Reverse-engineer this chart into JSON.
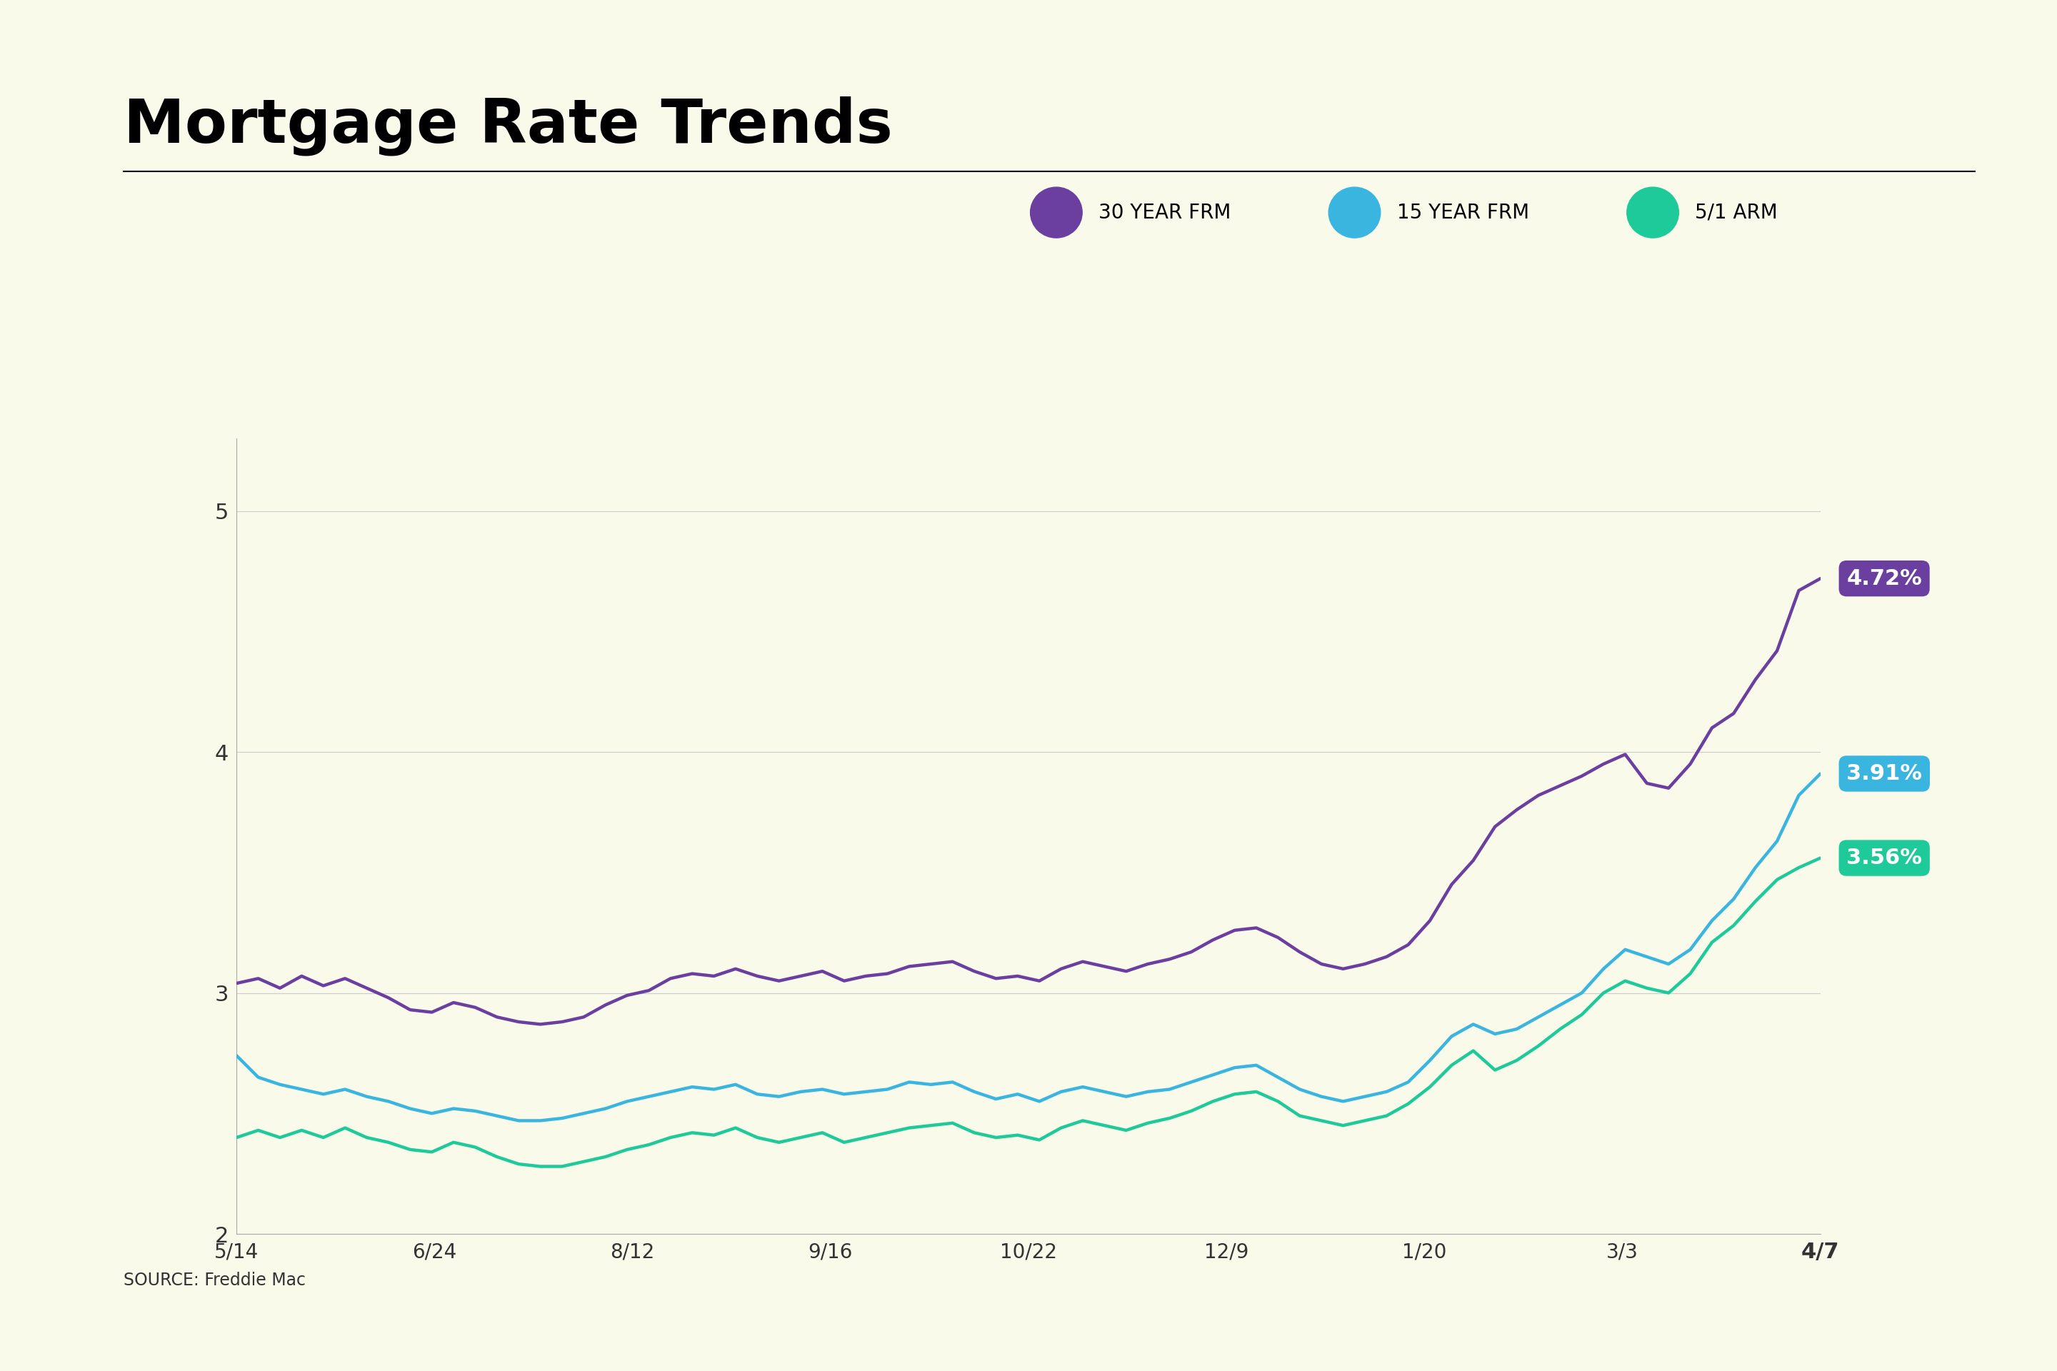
{
  "title": "Mortgage Rate Trends",
  "background_color": "#fafaeb",
  "source_text": "SOURCE: Freddie Mac",
  "ylim": [
    2.0,
    5.3
  ],
  "yticks": [
    2,
    3,
    4,
    5
  ],
  "legend": [
    {
      "label": "30 YEAR FRM",
      "color": "#6b3fa0"
    },
    {
      "label": "15 YEAR FRM",
      "color": "#3ab5e0"
    },
    {
      "label": "5/1 ARM",
      "color": "#1ec99a"
    }
  ],
  "annotations": [
    {
      "text": "4.72%",
      "color": "#6b3fa0",
      "value": 4.72
    },
    {
      "text": "3.91%",
      "color": "#3ab5e0",
      "value": 3.91
    },
    {
      "text": "3.56%",
      "color": "#1ec99a",
      "value": 3.56
    }
  ],
  "x_labels": [
    "5/14",
    "6/24",
    "8/12",
    "9/16",
    "10/22",
    "12/9",
    "1/20",
    "3/3",
    "4/7"
  ],
  "series_30yr": [
    3.04,
    3.06,
    3.02,
    3.07,
    3.03,
    3.06,
    3.02,
    2.98,
    2.93,
    2.92,
    2.96,
    2.94,
    2.9,
    2.88,
    2.87,
    2.88,
    2.9,
    2.95,
    2.99,
    3.01,
    3.06,
    3.08,
    3.07,
    3.1,
    3.07,
    3.05,
    3.07,
    3.09,
    3.05,
    3.07,
    3.08,
    3.11,
    3.12,
    3.13,
    3.09,
    3.06,
    3.07,
    3.05,
    3.1,
    3.13,
    3.11,
    3.09,
    3.12,
    3.14,
    3.17,
    3.22,
    3.26,
    3.27,
    3.23,
    3.17,
    3.12,
    3.1,
    3.12,
    3.15,
    3.2,
    3.3,
    3.45,
    3.55,
    3.69,
    3.76,
    3.82,
    3.86,
    3.9,
    3.95,
    3.99,
    3.87,
    3.85,
    3.95,
    4.1,
    4.16,
    4.3,
    4.42,
    4.67,
    4.72
  ],
  "series_15yr": [
    2.74,
    2.65,
    2.62,
    2.6,
    2.58,
    2.6,
    2.57,
    2.55,
    2.52,
    2.5,
    2.52,
    2.51,
    2.49,
    2.47,
    2.47,
    2.48,
    2.5,
    2.52,
    2.55,
    2.57,
    2.59,
    2.61,
    2.6,
    2.62,
    2.58,
    2.57,
    2.59,
    2.6,
    2.58,
    2.59,
    2.6,
    2.63,
    2.62,
    2.63,
    2.59,
    2.56,
    2.58,
    2.55,
    2.59,
    2.61,
    2.59,
    2.57,
    2.59,
    2.6,
    2.63,
    2.66,
    2.69,
    2.7,
    2.65,
    2.6,
    2.57,
    2.55,
    2.57,
    2.59,
    2.63,
    2.72,
    2.82,
    2.87,
    2.83,
    2.85,
    2.9,
    2.95,
    3.0,
    3.1,
    3.18,
    3.15,
    3.12,
    3.18,
    3.3,
    3.39,
    3.52,
    3.63,
    3.82,
    3.91
  ],
  "series_arm": [
    2.4,
    2.43,
    2.4,
    2.43,
    2.4,
    2.44,
    2.4,
    2.38,
    2.35,
    2.34,
    2.38,
    2.36,
    2.32,
    2.29,
    2.28,
    2.28,
    2.3,
    2.32,
    2.35,
    2.37,
    2.4,
    2.42,
    2.41,
    2.44,
    2.4,
    2.38,
    2.4,
    2.42,
    2.38,
    2.4,
    2.42,
    2.44,
    2.45,
    2.46,
    2.42,
    2.4,
    2.41,
    2.39,
    2.44,
    2.47,
    2.45,
    2.43,
    2.46,
    2.48,
    2.51,
    2.55,
    2.58,
    2.59,
    2.55,
    2.49,
    2.47,
    2.45,
    2.47,
    2.49,
    2.54,
    2.61,
    2.7,
    2.76,
    2.68,
    2.72,
    2.78,
    2.85,
    2.91,
    3.0,
    3.05,
    3.02,
    3.0,
    3.08,
    3.21,
    3.28,
    3.38,
    3.47,
    3.52,
    3.56
  ]
}
